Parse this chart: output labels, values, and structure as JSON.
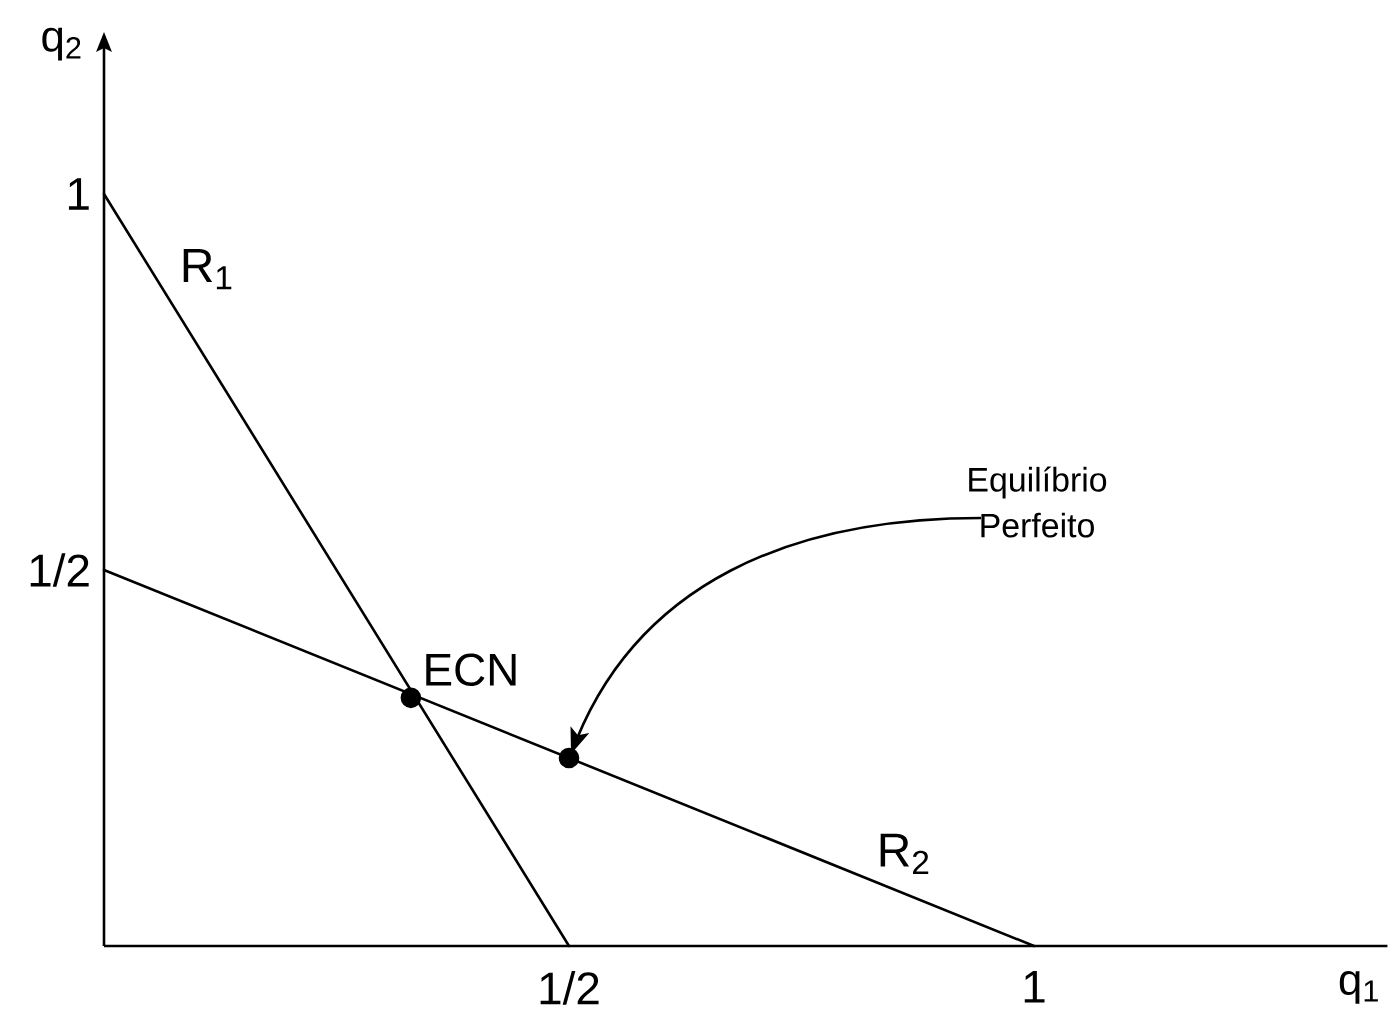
{
  "chart_data": {
    "type": "line",
    "xlabel": "q$_{1}$",
    "ylabel": "q$_{2}$",
    "xlim": [
      0,
      1.38
    ],
    "ylim": [
      0,
      1.21
    ],
    "xticks": [
      {
        "value": 0.5,
        "label": "1/2"
      },
      {
        "value": 1,
        "label": "1"
      }
    ],
    "yticks": [
      {
        "value": 0.5,
        "label": "1/2"
      },
      {
        "value": 1,
        "label": "1"
      }
    ],
    "series": [
      {
        "name": "R$_{1}$",
        "color": "#000000",
        "x": [
          0,
          0.5
        ],
        "values": [
          1,
          0
        ]
      },
      {
        "name": "R$_{2}$",
        "color": "#000000",
        "x": [
          0,
          1
        ],
        "values": [
          0.5,
          0
        ]
      },
      {
        "type": "scatter",
        "color": "#000000",
        "marker": "circle",
        "x": [
          0.33,
          0.5
        ],
        "values": [
          0.33,
          0.25
        ]
      }
    ],
    "annotations": [
      {
        "text": "ECN",
        "x": 0.33,
        "y": 0.33
      },
      {
        "text": "Equilíbrio Perfeito",
        "x": 0.5,
        "y": 0.25
      }
    ]
  }
}
